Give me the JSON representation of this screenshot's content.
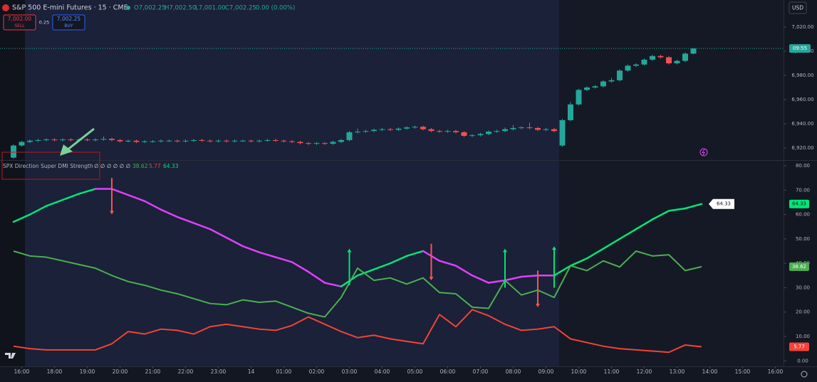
{
  "header": {
    "symbol": "S&P 500 E-mini Futures · 15 · CME",
    "ohlc": [
      "O7,002.25",
      "H7,002.50",
      "L7,001.00",
      "C7,002.25",
      "0.00 (0.00%)"
    ]
  },
  "trade": {
    "sell_price": "7,002.00",
    "sell": "SELL",
    "spread": "0.25",
    "buy_price": "7,002.25",
    "buy": "BUY"
  },
  "currency": "USD",
  "countdown": "09:55",
  "indicator_legend": {
    "name": "SPX Direction Super DMI Strength",
    "inputs": "∅ ∅ ∅ ∅ ∅ ∅"
  },
  "chart_data": [
    {
      "type": "candlestick",
      "up_color": "#26a69a",
      "down_color": "#ef5350",
      "xlim": [
        -1.65,
        94
      ],
      "ylim": [
        6910,
        7042.35
      ],
      "yticks": [
        {
          "value": 7020,
          "label": "7,020.00"
        },
        {
          "value": 7000,
          "label": "7,000.00"
        },
        {
          "value": 6980,
          "label": "6,980.00"
        },
        {
          "value": 6960,
          "label": "6,960.00"
        },
        {
          "value": 6940,
          "label": "6,940.00"
        },
        {
          "value": 6920,
          "label": "6,920.00"
        }
      ],
      "open": [
        6912,
        6922,
        6925,
        6926,
        6926.5,
        6927,
        6926.5,
        6927,
        6926.5,
        6927,
        6926.5,
        6927,
        6927.5,
        6926.5,
        6925.5,
        6926,
        6925,
        6925.5,
        6925.5,
        6926,
        6926,
        6925.5,
        6926,
        6926.5,
        6926,
        6925.5,
        6926,
        6925.5,
        6926,
        6926,
        6925.5,
        6926,
        6926.5,
        6926,
        6925.5,
        6925,
        6924,
        6923.5,
        6924,
        6923.5,
        6925,
        6926.5,
        6933,
        6933.5,
        6934,
        6935,
        6935.5,
        6935,
        6936,
        6937,
        6937.5,
        6935.5,
        6934,
        6933.5,
        6934,
        6933,
        6930,
        6930.5,
        6931.5,
        6933.5,
        6934,
        6935.5,
        6936.5,
        6937,
        6936.5,
        6935,
        6935.5,
        6922,
        6943,
        6956,
        6968,
        6970,
        6971,
        6975,
        6976,
        6984,
        6988,
        6989,
        6993,
        6996,
        6995,
        6990,
        6992,
        6998
      ],
      "high": [
        6923,
        6926,
        6927,
        6927.5,
        6928,
        6928,
        6928,
        6928,
        6928,
        6928,
        6928,
        6929.5,
        6928.5,
        6927.5,
        6927,
        6927,
        6926.5,
        6926.5,
        6927,
        6927,
        6927,
        6927,
        6927.5,
        6927.5,
        6927,
        6927,
        6927,
        6927,
        6927,
        6927,
        6927,
        6927.5,
        6927.5,
        6927,
        6926.5,
        6926,
        6925,
        6925,
        6925,
        6926,
        6927.5,
        6934,
        6936,
        6935,
        6936,
        6936.5,
        6936.5,
        6937,
        6938,
        6938.5,
        6938.5,
        6936.5,
        6935,
        6935,
        6935,
        6934,
        6931.5,
        6932.5,
        6934.5,
        6935,
        6937,
        6939,
        6938,
        6941,
        6937.5,
        6936.5,
        6936.5,
        6944,
        6958,
        6969,
        6971,
        6972,
        6976,
        6978,
        6985,
        6989,
        6990,
        6994,
        6997,
        6997,
        6996,
        6993,
        6999,
        7002.5
      ],
      "low": [
        6911,
        6921,
        6924,
        6925,
        6925.5,
        6925.5,
        6925.5,
        6925.5,
        6925.5,
        6925.5,
        6925.5,
        6926,
        6925.5,
        6924.5,
        6924.5,
        6924,
        6924,
        6924.5,
        6924.5,
        6925,
        6924.5,
        6924.5,
        6925,
        6925,
        6924.5,
        6924.5,
        6924.5,
        6924.5,
        6925,
        6924.5,
        6924.5,
        6925,
        6925,
        6924.5,
        6924,
        6923,
        6922.5,
        6922.5,
        6922.5,
        6922.5,
        6924,
        6925.5,
        6932,
        6932.5,
        6933,
        6934,
        6934,
        6934,
        6935,
        6936,
        6934.5,
        6933,
        6932.5,
        6932.5,
        6932,
        6929,
        6929,
        6929.5,
        6930.5,
        6932.5,
        6933,
        6934.5,
        6935.5,
        6935.5,
        6934,
        6934,
        6933,
        6921,
        6942,
        6955,
        6967,
        6969,
        6970,
        6974,
        6975,
        6983,
        6987,
        6988,
        6992,
        6994,
        6989,
        6989,
        6991,
        6997.5
      ],
      "close": [
        6922,
        6925,
        6926,
        6926.5,
        6927,
        6926.5,
        6927,
        6926.5,
        6927,
        6926.5,
        6927,
        6927.5,
        6926.5,
        6925.5,
        6926,
        6925,
        6925.5,
        6925.5,
        6926,
        6926,
        6925.5,
        6926,
        6926.5,
        6926,
        6925.5,
        6926,
        6925.5,
        6926,
        6926,
        6925.5,
        6926,
        6926.5,
        6926,
        6925.5,
        6925,
        6924,
        6923.5,
        6924,
        6923.5,
        6925,
        6926.5,
        6933,
        6933.5,
        6934,
        6935,
        6935.5,
        6935,
        6936,
        6937,
        6937.5,
        6935.5,
        6934,
        6933.5,
        6934,
        6933,
        6930,
        6930.5,
        6931.5,
        6933.5,
        6934,
        6935.5,
        6936.5,
        6937,
        6936.5,
        6935,
        6935.5,
        6934,
        6943,
        6956,
        6968,
        6970,
        6971,
        6975,
        6976,
        6984,
        6988,
        6989,
        6993,
        6996,
        6995,
        6990,
        6992,
        6998,
        7002.25
      ]
    },
    {
      "type": "line",
      "xlim": [
        -1.65,
        94
      ],
      "ylim": [
        -2.26,
        82.04
      ],
      "yticks": [
        {
          "value": 80,
          "label": "80.00"
        },
        {
          "value": 70,
          "label": "70.00"
        },
        {
          "value": 60,
          "label": "60.00"
        },
        {
          "value": 50,
          "label": "50.00"
        },
        {
          "value": 40,
          "label": "40.00"
        },
        {
          "value": 30,
          "label": "30.00"
        },
        {
          "value": 20,
          "label": "20.00"
        },
        {
          "value": 10,
          "label": "10.00"
        },
        {
          "value": 0,
          "label": "0.00"
        }
      ],
      "xticks": [
        {
          "value": 1,
          "label": "16:00"
        },
        {
          "value": 5,
          "label": "18:00"
        },
        {
          "value": 9,
          "label": "19:00"
        },
        {
          "value": 13,
          "label": "20:00"
        },
        {
          "value": 17,
          "label": "21:00"
        },
        {
          "value": 21,
          "label": "22:00"
        },
        {
          "value": 25,
          "label": "23:00"
        },
        {
          "value": 29,
          "label": "14"
        },
        {
          "value": 33,
          "label": "01:00"
        },
        {
          "value": 37,
          "label": "02:00"
        },
        {
          "value": 41,
          "label": "03:00"
        },
        {
          "value": 45,
          "label": "04:00"
        },
        {
          "value": 49,
          "label": "05:00"
        },
        {
          "value": 53,
          "label": "06:00"
        },
        {
          "value": 57,
          "label": "07:00"
        },
        {
          "value": 61,
          "label": "08:00"
        },
        {
          "value": 65,
          "label": "09:00"
        },
        {
          "value": 69,
          "label": "10:00"
        },
        {
          "value": 73,
          "label": "11:00"
        },
        {
          "value": 77,
          "label": "12:00"
        },
        {
          "value": 81,
          "label": "13:00"
        },
        {
          "value": 85,
          "label": "14:00"
        },
        {
          "value": 89,
          "label": "15:00"
        },
        {
          "value": 93,
          "label": "16:00"
        }
      ],
      "x": [
        0,
        2,
        4,
        6,
        8,
        10,
        12,
        14,
        16,
        18,
        20,
        22,
        24,
        26,
        28,
        30,
        32,
        34,
        36,
        38,
        40,
        42,
        44,
        46,
        48,
        50,
        52,
        54,
        56,
        58,
        60,
        62,
        64,
        66,
        68,
        70,
        72,
        74,
        76,
        78,
        80,
        82,
        84
      ],
      "series": [
        {
          "color": "#00e676",
          "width": 2.5,
          "callout": true,
          "colors": [
            "#00e676",
            "#00e676",
            "#00e676",
            "#00e676",
            "#00e676",
            "#00e676",
            "#e040fb",
            "#e040fb",
            "#e040fb",
            "#e040fb",
            "#e040fb",
            "#e040fb",
            "#e040fb",
            "#e040fb",
            "#e040fb",
            "#e040fb",
            "#e040fb",
            "#e040fb",
            "#e040fb",
            "#e040fb",
            "#e040fb",
            "#00e676",
            "#00e676",
            "#00e676",
            "#00e676",
            "#00e676",
            "#e040fb",
            "#e040fb",
            "#e040fb",
            "#e040fb",
            "#e040fb",
            "#e040fb",
            "#e040fb",
            "#e040fb",
            "#00e676",
            "#00e676",
            "#00e676",
            "#00e676",
            "#00e676",
            "#00e676",
            "#00e676",
            "#00e676",
            "#00e676"
          ],
          "values": [
            57,
            60,
            63.5,
            66,
            68.5,
            70.5,
            70.5,
            68,
            65.5,
            62,
            59,
            56.5,
            54,
            50.5,
            47,
            44.5,
            42.5,
            40.5,
            36.5,
            32,
            30.5,
            35,
            37.5,
            40,
            43,
            45,
            41,
            39,
            35,
            32,
            33,
            34.5,
            35,
            35,
            39,
            42,
            46,
            50,
            54,
            58,
            61.5,
            62.5,
            64.33
          ]
        },
        {
          "color": "#4caf50",
          "width": 2,
          "values": [
            45,
            43,
            42.5,
            41,
            39.5,
            38,
            35,
            32.5,
            31,
            29,
            27.5,
            25.5,
            23.5,
            23,
            25,
            24,
            24.5,
            22,
            19.5,
            18,
            26,
            38,
            33,
            34,
            31.5,
            34,
            28,
            27.5,
            22,
            21.5,
            33,
            27,
            29,
            26,
            39,
            37,
            41,
            38.5,
            45,
            43,
            43.5,
            37,
            38.62
          ]
        },
        {
          "color": "#f44336",
          "width": 2,
          "values": [
            6,
            5,
            4.5,
            4.5,
            4.5,
            4.5,
            7,
            12,
            11,
            13,
            12.5,
            11,
            14,
            15,
            14,
            13,
            12.5,
            14.5,
            18,
            15,
            12,
            9.5,
            10.5,
            9,
            8,
            7,
            19,
            14,
            21,
            18.5,
            15,
            12.5,
            13,
            14,
            9,
            7.5,
            6,
            5,
            4.5,
            4,
            3.5,
            6.5,
            5.77
          ]
        }
      ],
      "sell_signals": {
        "color": "#ff5252",
        "x": [
          12,
          51,
          64
        ],
        "from": [
          75,
          48,
          37
        ],
        "to": [
          60,
          33,
          22
        ]
      },
      "buy_signals": {
        "color": "#00e676",
        "x": [
          41,
          60,
          66
        ],
        "from": [
          31,
          30,
          30
        ],
        "to": [
          46,
          46,
          47
        ]
      }
    }
  ]
}
